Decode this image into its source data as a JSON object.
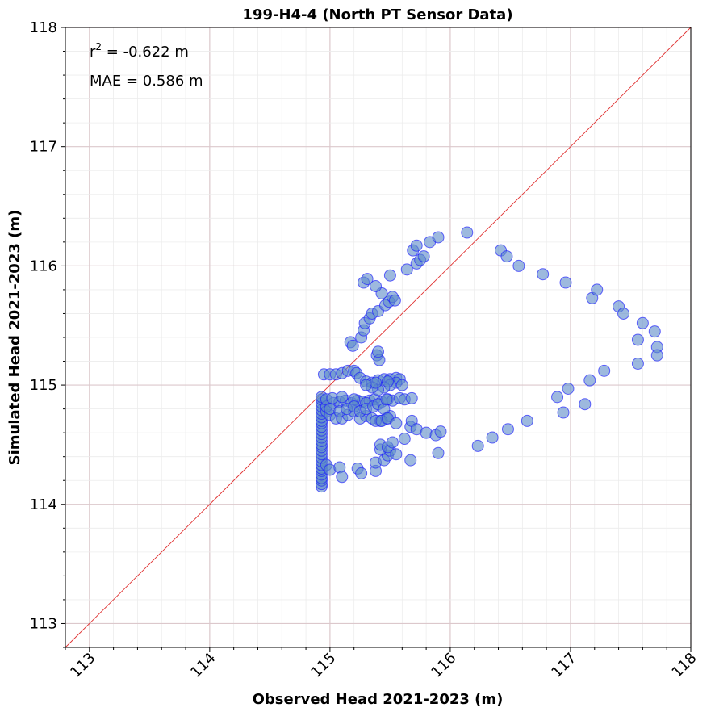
{
  "chart_data": {
    "type": "scatter",
    "title": "199-H4-4 (North PT Sensor Data)",
    "xlabel": "Observed Head 2021-2023 (m)",
    "ylabel": "Simulated Head 2021-2023 (m)",
    "xlim": [
      112.8,
      118
    ],
    "ylim": [
      112.8,
      118
    ],
    "xticks": [
      "113",
      "114",
      "115",
      "116",
      "117",
      "118"
    ],
    "yticks": [
      "113",
      "114",
      "115",
      "116",
      "117",
      "118"
    ],
    "grid": true,
    "annotations": {
      "r2_prefix": "r",
      "r2_sup": "2",
      "r2_rest": " = -0.622 m",
      "mae": "MAE = 0.586 m"
    },
    "reference_line": "1:1",
    "colors": {
      "marker_fill": "#5b8ac8",
      "marker_edge": "#1a1aff",
      "reference_line": "#e03030",
      "major_grid": "#dcc8cc",
      "minor_grid": "#ececec"
    },
    "series": [
      {
        "points": [
          [
            114.93,
            114.15
          ],
          [
            114.93,
            114.17
          ],
          [
            114.93,
            114.2
          ],
          [
            114.93,
            114.22
          ],
          [
            114.93,
            114.25
          ],
          [
            114.93,
            114.28
          ],
          [
            114.93,
            114.3
          ],
          [
            114.93,
            114.33
          ],
          [
            114.93,
            114.36
          ],
          [
            114.93,
            114.39
          ],
          [
            114.93,
            114.42
          ],
          [
            114.93,
            114.45
          ],
          [
            114.93,
            114.48
          ],
          [
            114.93,
            114.5
          ],
          [
            114.93,
            114.53
          ],
          [
            114.93,
            114.56
          ],
          [
            114.93,
            114.59
          ],
          [
            114.93,
            114.62
          ],
          [
            114.93,
            114.65
          ],
          [
            114.93,
            114.68
          ],
          [
            114.93,
            114.7
          ],
          [
            114.93,
            114.73
          ],
          [
            114.93,
            114.76
          ],
          [
            114.93,
            114.79
          ],
          [
            114.93,
            114.82
          ],
          [
            114.93,
            114.85
          ],
          [
            114.93,
            114.88
          ],
          [
            114.93,
            114.9
          ],
          [
            114.97,
            114.78
          ],
          [
            115.0,
            114.75
          ],
          [
            115.05,
            114.72
          ],
          [
            115.1,
            114.72
          ],
          [
            115.15,
            114.75
          ],
          [
            115.2,
            114.78
          ],
          [
            115.25,
            114.72
          ],
          [
            115.3,
            114.74
          ],
          [
            115.35,
            114.72
          ],
          [
            115.42,
            114.7
          ],
          [
            115.47,
            114.72
          ],
          [
            115.5,
            114.74
          ],
          [
            114.97,
            114.82
          ],
          [
            115.03,
            114.85
          ],
          [
            115.08,
            114.86
          ],
          [
            115.13,
            114.87
          ],
          [
            115.18,
            114.85
          ],
          [
            115.23,
            114.87
          ],
          [
            115.27,
            114.86
          ],
          [
            115.33,
            114.87
          ],
          [
            115.37,
            114.88
          ],
          [
            115.43,
            114.86
          ],
          [
            115.48,
            114.88
          ],
          [
            115.52,
            114.87
          ],
          [
            115.58,
            114.89
          ],
          [
            115.62,
            114.88
          ],
          [
            115.68,
            114.89
          ],
          [
            114.97,
            114.88
          ],
          [
            115.02,
            114.89
          ],
          [
            115.1,
            114.9
          ],
          [
            115.2,
            114.88
          ],
          [
            115.3,
            114.85
          ],
          [
            115.0,
            114.8
          ],
          [
            115.08,
            114.78
          ],
          [
            115.14,
            114.8
          ],
          [
            115.2,
            114.82
          ],
          [
            115.25,
            114.78
          ],
          [
            115.3,
            114.8
          ],
          [
            115.36,
            114.82
          ],
          [
            115.4,
            114.84
          ],
          [
            115.45,
            114.8
          ],
          [
            114.95,
            115.09
          ],
          [
            115.0,
            115.09
          ],
          [
            115.05,
            115.09
          ],
          [
            115.1,
            115.1
          ],
          [
            115.15,
            115.12
          ],
          [
            115.2,
            115.12
          ],
          [
            115.22,
            115.1
          ],
          [
            115.25,
            115.06
          ],
          [
            115.3,
            115.03
          ],
          [
            115.35,
            115.02
          ],
          [
            115.4,
            115.04
          ],
          [
            115.45,
            115.05
          ],
          [
            115.5,
            115.05
          ],
          [
            115.55,
            115.06
          ],
          [
            115.58,
            115.05
          ],
          [
            115.55,
            115.02
          ],
          [
            115.5,
            115.0
          ],
          [
            115.45,
            114.98
          ],
          [
            115.4,
            114.96
          ],
          [
            115.35,
            114.98
          ],
          [
            115.3,
            115.0
          ],
          [
            115.38,
            115.02
          ],
          [
            115.48,
            115.03
          ],
          [
            115.6,
            115.0
          ],
          [
            114.97,
            114.33
          ],
          [
            115.0,
            114.29
          ],
          [
            115.08,
            114.31
          ],
          [
            115.1,
            114.23
          ],
          [
            115.23,
            114.3
          ],
          [
            115.26,
            114.26
          ],
          [
            115.38,
            114.28
          ],
          [
            115.38,
            114.35
          ],
          [
            115.45,
            114.37
          ],
          [
            115.48,
            114.41
          ],
          [
            115.5,
            114.45
          ],
          [
            115.42,
            114.46
          ],
          [
            115.42,
            114.5
          ],
          [
            115.48,
            114.48
          ],
          [
            115.52,
            114.52
          ],
          [
            115.55,
            114.42
          ],
          [
            115.62,
            114.55
          ],
          [
            115.67,
            114.37
          ],
          [
            115.67,
            114.65
          ],
          [
            115.68,
            114.7
          ],
          [
            115.72,
            114.63
          ],
          [
            115.8,
            114.6
          ],
          [
            115.88,
            114.58
          ],
          [
            115.9,
            114.43
          ],
          [
            115.92,
            114.61
          ],
          [
            115.38,
            114.7
          ],
          [
            115.43,
            114.7
          ],
          [
            115.48,
            114.72
          ],
          [
            115.55,
            114.68
          ],
          [
            115.47,
            114.88
          ],
          [
            115.17,
            115.36
          ],
          [
            115.19,
            115.33
          ],
          [
            115.26,
            115.4
          ],
          [
            115.28,
            115.46
          ],
          [
            115.29,
            115.52
          ],
          [
            115.33,
            115.56
          ],
          [
            115.35,
            115.6
          ],
          [
            115.39,
            115.25
          ],
          [
            115.41,
            115.21
          ],
          [
            115.4,
            115.28
          ],
          [
            115.4,
            115.62
          ],
          [
            115.43,
            115.77
          ],
          [
            115.46,
            115.67
          ],
          [
            115.49,
            115.7
          ],
          [
            115.5,
            115.92
          ],
          [
            115.28,
            115.86
          ],
          [
            115.31,
            115.89
          ],
          [
            115.38,
            115.83
          ],
          [
            115.52,
            115.74
          ],
          [
            115.54,
            115.71
          ],
          [
            115.64,
            115.97
          ],
          [
            115.69,
            116.13
          ],
          [
            115.72,
            116.17
          ],
          [
            115.72,
            116.02
          ],
          [
            115.75,
            116.05
          ],
          [
            115.78,
            116.08
          ],
          [
            115.83,
            116.2
          ],
          [
            115.9,
            116.24
          ],
          [
            116.14,
            116.28
          ],
          [
            116.42,
            116.13
          ],
          [
            116.47,
            116.08
          ],
          [
            116.57,
            116.0
          ],
          [
            116.77,
            115.93
          ],
          [
            116.96,
            115.86
          ],
          [
            117.18,
            115.73
          ],
          [
            117.22,
            115.8
          ],
          [
            117.4,
            115.66
          ],
          [
            117.44,
            115.6
          ],
          [
            117.6,
            115.52
          ],
          [
            117.7,
            115.45
          ],
          [
            117.56,
            115.38
          ],
          [
            117.72,
            115.32
          ],
          [
            117.72,
            115.25
          ],
          [
            117.56,
            115.18
          ],
          [
            117.28,
            115.12
          ],
          [
            117.16,
            115.04
          ],
          [
            116.98,
            114.97
          ],
          [
            116.89,
            114.9
          ],
          [
            117.12,
            114.84
          ],
          [
            116.94,
            114.77
          ],
          [
            116.64,
            114.7
          ],
          [
            116.48,
            114.63
          ],
          [
            116.35,
            114.56
          ],
          [
            116.23,
            114.49
          ]
        ]
      }
    ]
  }
}
